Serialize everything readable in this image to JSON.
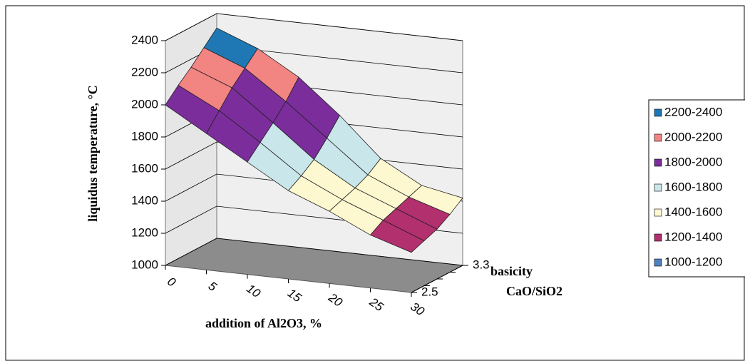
{
  "chart_data": {
    "type": "surface",
    "y_label": "liquidus temperature,  °C",
    "x_label": "addition of Al2O3, %",
    "z_label": [
      "basicity",
      "CaO/SiO2"
    ],
    "categories": [
      "0",
      "5",
      "10",
      "15",
      "20",
      "25",
      "30"
    ],
    "depth_categories": [
      "2.5",
      null,
      null,
      null,
      "3.3"
    ],
    "ylim": [
      1000,
      2400
    ],
    "yticks": [
      1000,
      1200,
      1400,
      1600,
      1800,
      2000,
      2200,
      2400
    ],
    "values": [
      [
        2000,
        1850,
        1700,
        1550,
        1450,
        1330,
        1250
      ],
      [
        2080,
        1950,
        1780,
        1600,
        1480,
        1380,
        1280
      ],
      [
        2150,
        2050,
        1860,
        1660,
        1510,
        1410,
        1310
      ],
      [
        2230,
        2130,
        1950,
        1750,
        1550,
        1440,
        1360
      ],
      [
        2310,
        2210,
        2060,
        1850,
        1610,
        1470,
        1420
      ]
    ],
    "series": [
      {
        "name": "2200-2400",
        "color": "#1f78b4"
      },
      {
        "name": "2000-2200",
        "color": "#f28482"
      },
      {
        "name": "1800-2000",
        "color": "#7b2d9b"
      },
      {
        "name": "1600-1800",
        "color": "#c9e6ea"
      },
      {
        "name": "1400-1600",
        "color": "#fdf8cf"
      },
      {
        "name": "1200-1400",
        "color": "#b2306e"
      },
      {
        "name": "1000-1200",
        "color": "#4f81bd"
      }
    ]
  }
}
